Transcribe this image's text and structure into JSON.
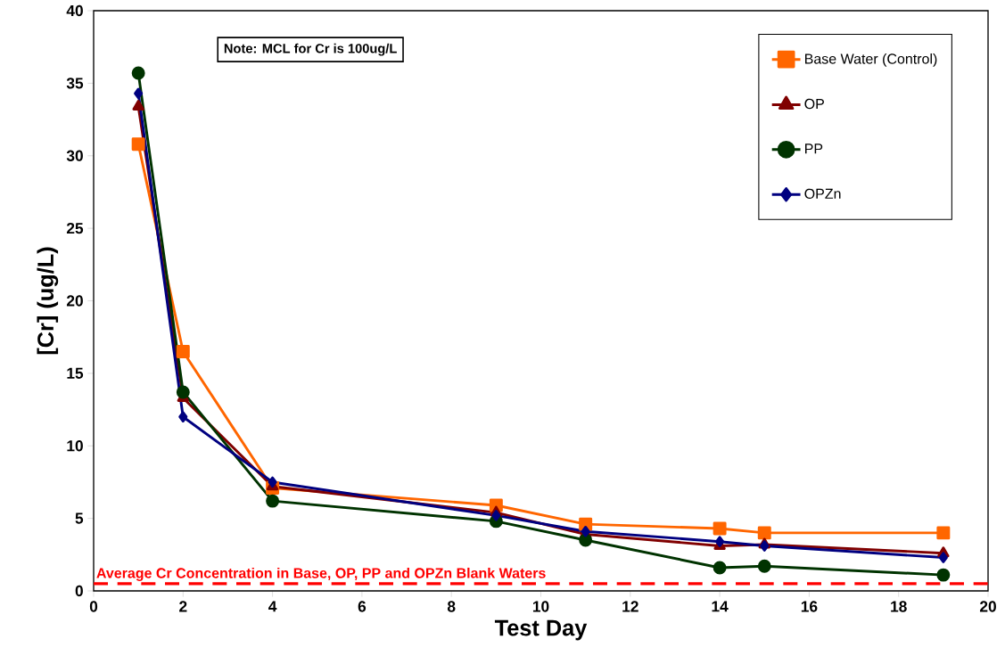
{
  "chart_data": {
    "type": "line",
    "xlabel": "Test Day",
    "ylabel": "[Cr] (ug/L)",
    "x": [
      1,
      2,
      4,
      9,
      11,
      14,
      15,
      19
    ],
    "series": [
      {
        "name": "Base Water (Control)",
        "color": "#ff6600",
        "marker": "square",
        "values": [
          30.8,
          16.5,
          7.1,
          5.9,
          4.6,
          4.3,
          4.0,
          4.0
        ]
      },
      {
        "name": "OP",
        "color": "#800000",
        "marker": "triangle",
        "values": [
          33.4,
          13.3,
          7.2,
          5.4,
          3.9,
          3.1,
          3.2,
          2.6
        ]
      },
      {
        "name": "PP",
        "color": "#003300",
        "marker": "circle",
        "values": [
          35.7,
          13.7,
          6.2,
          4.8,
          3.5,
          1.6,
          1.7,
          1.1
        ]
      },
      {
        "name": "OPZn",
        "color": "#000080",
        "marker": "diamond",
        "values": [
          34.3,
          12.0,
          7.5,
          5.2,
          4.1,
          3.4,
          3.1,
          2.3
        ]
      }
    ],
    "xlim": [
      0,
      20
    ],
    "xticks": [
      0,
      2,
      4,
      6,
      8,
      10,
      12,
      14,
      16,
      18,
      20
    ],
    "ylim": [
      0,
      40
    ],
    "yticks": [
      0,
      5,
      10,
      15,
      20,
      25,
      30,
      35,
      40
    ],
    "ref_lines": [
      {
        "axis": "y",
        "value": 0.5,
        "label": "Average Cr Concentration in Base, OP, PP and OPZn Blank Waters",
        "color": "#ff0000",
        "line_style": "dashed"
      }
    ],
    "annotations": [
      "Note:  MCL for Cr is 100ug/L"
    ],
    "grid": false,
    "legend": "top right",
    "line_style": "solid"
  }
}
